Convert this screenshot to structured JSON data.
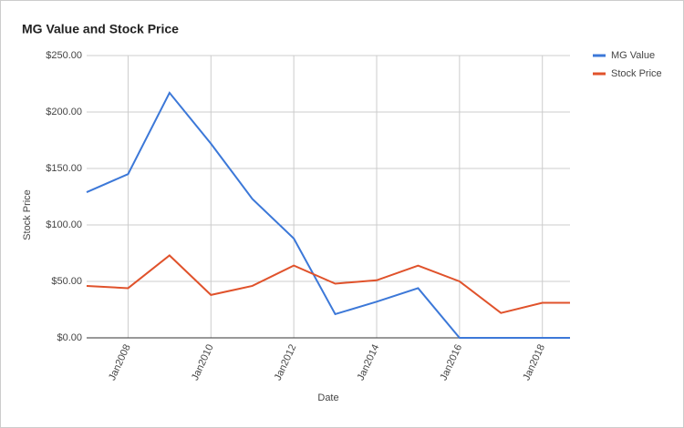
{
  "chart_data": {
    "type": "line",
    "title": "MG Value and Stock Price",
    "x_label": "Date",
    "y_label": "Stock Price",
    "x": [
      "2007-01",
      "2008-01",
      "2009-01",
      "2010-01",
      "2011-01",
      "2012-01",
      "2013-01",
      "2014-01",
      "2015-01",
      "2016-01",
      "2017-01",
      "2018-01",
      "2018-09"
    ],
    "series": [
      {
        "name": "MG Value",
        "color": "#3c78d8",
        "values": [
          129,
          145,
          217,
          172,
          123,
          88,
          21,
          32,
          44,
          0,
          0,
          0,
          0
        ]
      },
      {
        "name": "Stock Price",
        "color": "#e0522b",
        "values": [
          46,
          44,
          73,
          38,
          46,
          64,
          48,
          51,
          64,
          50,
          22,
          31,
          31
        ]
      }
    ],
    "xlim": [
      "2007-01",
      "2018-09"
    ],
    "xticks": [
      {
        "value": "2008-01",
        "label": "Jan2008"
      },
      {
        "value": "2010-01",
        "label": "Jan2010"
      },
      {
        "value": "2012-01",
        "label": "Jan2012"
      },
      {
        "value": "2014-01",
        "label": "Jan2014"
      },
      {
        "value": "2016-01",
        "label": "Jan2016"
      },
      {
        "value": "2018-01",
        "label": "Jan2018"
      }
    ],
    "ylim": [
      0,
      250
    ],
    "yticks": [
      {
        "value": 0,
        "label": "$0.00"
      },
      {
        "value": 50,
        "label": "$50.00"
      },
      {
        "value": 100,
        "label": "$100.00"
      },
      {
        "value": 150,
        "label": "$150.00"
      },
      {
        "value": 200,
        "label": "$200.00"
      },
      {
        "value": 250,
        "label": "$250.00"
      }
    ],
    "grid": true,
    "legend": "right"
  }
}
